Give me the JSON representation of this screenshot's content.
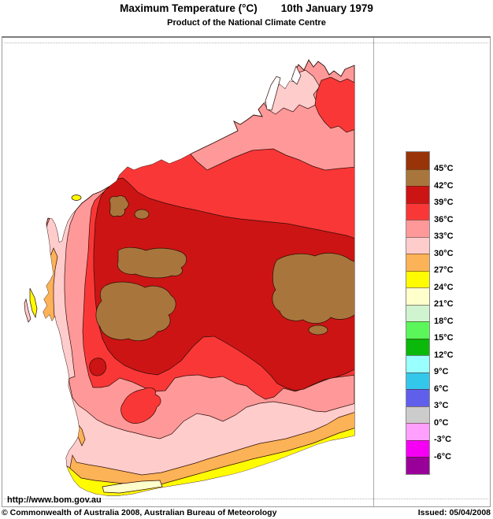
{
  "title": {
    "main": "Maximum Temperature (°C)",
    "date": "10th January 1979",
    "subtitle": "Product of the National Climate Centre"
  },
  "map": {
    "url_label": "http://www.bom.gov.au",
    "region_name": "Western Australia",
    "sea_color": "#ffffff",
    "contour_color": "#2e0e08"
  },
  "legend": {
    "unit": "°C",
    "labels": [
      "45°C",
      "42°C",
      "39°C",
      "36°C",
      "33°C",
      "30°C",
      "27°C",
      "24°C",
      "21°C",
      "18°C",
      "15°C",
      "12°C",
      "9°C",
      "6°C",
      "3°C",
      "0°C",
      "-3°C",
      "-6°C"
    ],
    "colors": [
      "#993408",
      "#A8763C",
      "#CC1414",
      "#FA3737",
      "#FF9999",
      "#FFCCCC",
      "#FCB256",
      "#FFFB00",
      "#FFFFCC",
      "#D0F4D0",
      "#5AF65A",
      "#0AB90A",
      "#99FFFF",
      "#33C8EB",
      "#5F5FEB",
      "#CCCCCC",
      "#FFA0FF",
      "#F500F5",
      "#990099"
    ]
  },
  "footer": {
    "copyright": "© Commonwealth of Australia 2008, Australian Bureau of Meteorology",
    "issued": "Issued: 05/04/2008"
  }
}
